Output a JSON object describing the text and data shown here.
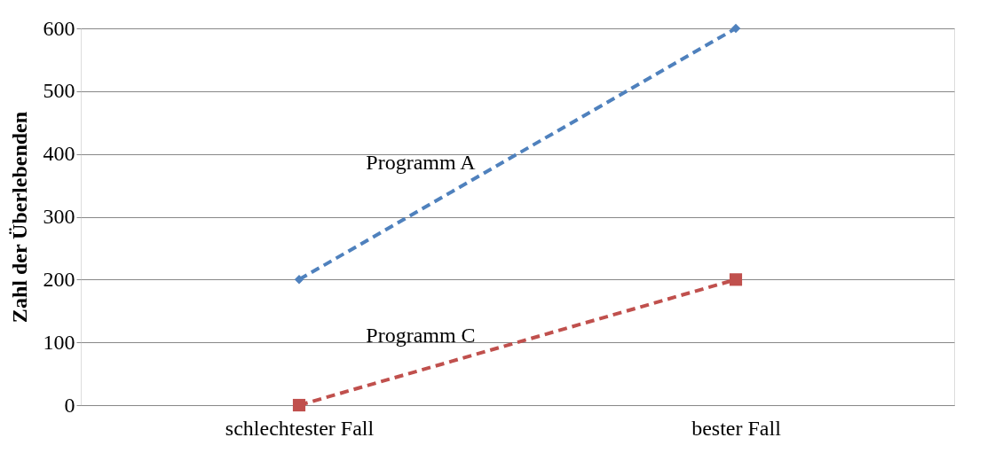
{
  "chart_data": {
    "type": "line",
    "ylabel": "Zahl der Überlebenden",
    "categories": [
      "schlechtester Fall",
      "bester Fall"
    ],
    "series": [
      {
        "name": "Programm A",
        "color": "#4f81bd",
        "values": [
          200,
          600
        ],
        "marker": "diamond"
      },
      {
        "name": "Programm C",
        "color": "#c0504d",
        "values": [
          0,
          200
        ],
        "marker": "square"
      }
    ],
    "ylim": [
      0,
      600
    ],
    "yticks": [
      0,
      100,
      200,
      300,
      400,
      500,
      600
    ],
    "grid": "y",
    "line_style": "dashed"
  }
}
